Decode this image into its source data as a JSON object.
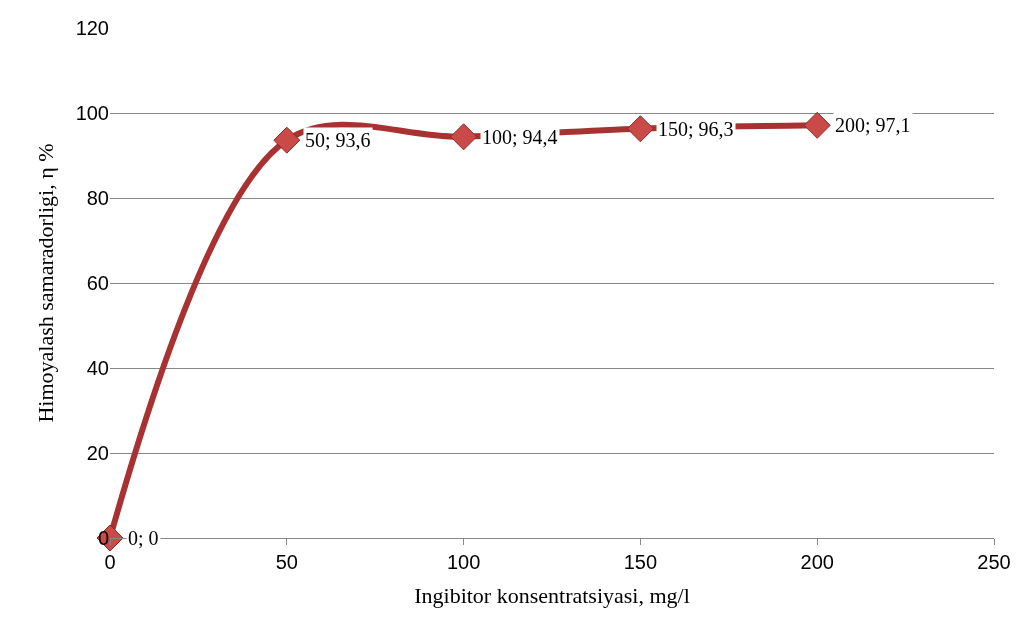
{
  "chart_data": {
    "type": "line",
    "xlabel": "Ingibitor konsentratsiyasi, mg/l",
    "ylabel": "Himoyalash samaradorligi, η %",
    "x": [
      0,
      50,
      100,
      150,
      200
    ],
    "series": [
      {
        "color": "#a83232",
        "values": [
          0,
          93.6,
          94.4,
          96.3,
          97.1
        ],
        "value_labels": [
          "0; 0",
          "50; 93,6",
          "100; 94,4",
          "150; 96,3",
          "200; 97,1"
        ]
      }
    ],
    "xlim": [
      0,
      250
    ],
    "xticks": [
      0,
      50,
      100,
      150,
      200,
      250
    ],
    "ylim": [
      0,
      120
    ],
    "yticks": [
      0,
      20,
      40,
      60,
      80,
      100,
      120
    ],
    "grid": "y",
    "marker": "diamond",
    "line_style": "solid",
    "legend": false
  }
}
